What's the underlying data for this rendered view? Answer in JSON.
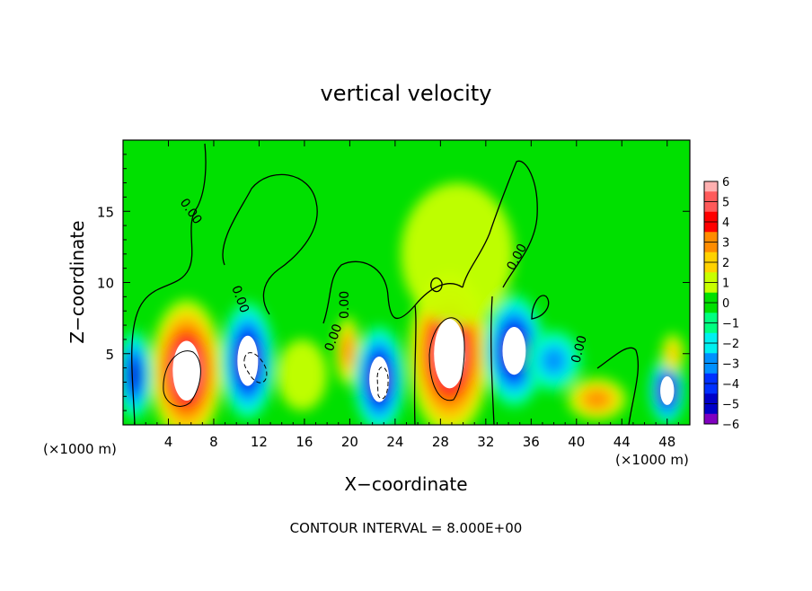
{
  "chart_data": {
    "type": "heatmap",
    "title": "vertical velocity",
    "xlabel": "X−coordinate",
    "ylabel": "Z−coordinate",
    "x_unit_left": "(×1000 m)",
    "x_unit_right": "(×1000 m)",
    "footer": "CONTOUR INTERVAL = 8.000E+00",
    "xlim": [
      0,
      50
    ],
    "ylim": [
      0,
      20
    ],
    "x_ticks": [
      4,
      8,
      12,
      16,
      20,
      24,
      28,
      32,
      36,
      40,
      44,
      48
    ],
    "y_ticks": [
      5,
      10,
      15
    ],
    "contour_labels": [
      "0.00",
      "0.00",
      "0.00",
      "0.00",
      "0.00",
      "0.00"
    ],
    "colorbar": {
      "ticks": [
        6,
        5,
        4,
        3,
        2,
        1,
        0,
        -1,
        -2,
        -3,
        -4,
        -5,
        -6
      ],
      "levels": [
        {
          "value": 6,
          "color": "#ffb0b0"
        },
        {
          "value": 5,
          "color": "#ff5a5a"
        },
        {
          "value": 4,
          "color": "#ff0000"
        },
        {
          "value": 3,
          "color": "#ff8c00"
        },
        {
          "value": 2,
          "color": "#ffd200"
        },
        {
          "value": 1,
          "color": "#c8ff00"
        },
        {
          "value": 0,
          "color": "#00e000"
        },
        {
          "value": -1,
          "color": "#00ff80"
        },
        {
          "value": -2,
          "color": "#00f0f0"
        },
        {
          "value": -3,
          "color": "#0090ff"
        },
        {
          "value": -4,
          "color": "#0030ff"
        },
        {
          "value": -5,
          "color": "#0000c8"
        },
        {
          "value": -6,
          "color": "#8000c0"
        }
      ]
    },
    "cells": [
      {
        "x": 5.6,
        "z": 3.8,
        "rx": 3.2,
        "rz": 5.0,
        "w": 9
      },
      {
        "x": 11.0,
        "z": 4.5,
        "rx": 2.4,
        "rz": 4.2,
        "w": -8
      },
      {
        "x": 19.8,
        "z": 5.2,
        "rx": 1.1,
        "rz": 2.4,
        "w": 3
      },
      {
        "x": 22.6,
        "z": 3.2,
        "rx": 2.3,
        "rz": 3.8,
        "w": -8
      },
      {
        "x": 28.8,
        "z": 5.0,
        "rx": 3.6,
        "rz": 5.8,
        "w": 9
      },
      {
        "x": 34.5,
        "z": 5.2,
        "rx": 2.7,
        "rz": 4.0,
        "w": -7
      },
      {
        "x": 41.8,
        "z": 1.8,
        "rx": 2.6,
        "rz": 1.5,
        "w": 3
      },
      {
        "x": 48.0,
        "z": 2.4,
        "rx": 1.6,
        "rz": 2.4,
        "w": -7
      },
      {
        "x": 48.5,
        "z": 5.0,
        "rx": 1.0,
        "rz": 1.4,
        "w": 2
      },
      {
        "x": 38.0,
        "z": 4.5,
        "rx": 2.5,
        "rz": 2.2,
        "w": -2.5
      },
      {
        "x": 15.8,
        "z": 3.5,
        "rx": 2.2,
        "rz": 2.5,
        "w": 1
      },
      {
        "x": 1.0,
        "z": 3.5,
        "rx": 1.6,
        "rz": 3.2,
        "w": -5
      },
      {
        "x": 29.5,
        "z": 12.0,
        "rx": 5.0,
        "rz": 5.0,
        "w": 0.6
      }
    ]
  }
}
